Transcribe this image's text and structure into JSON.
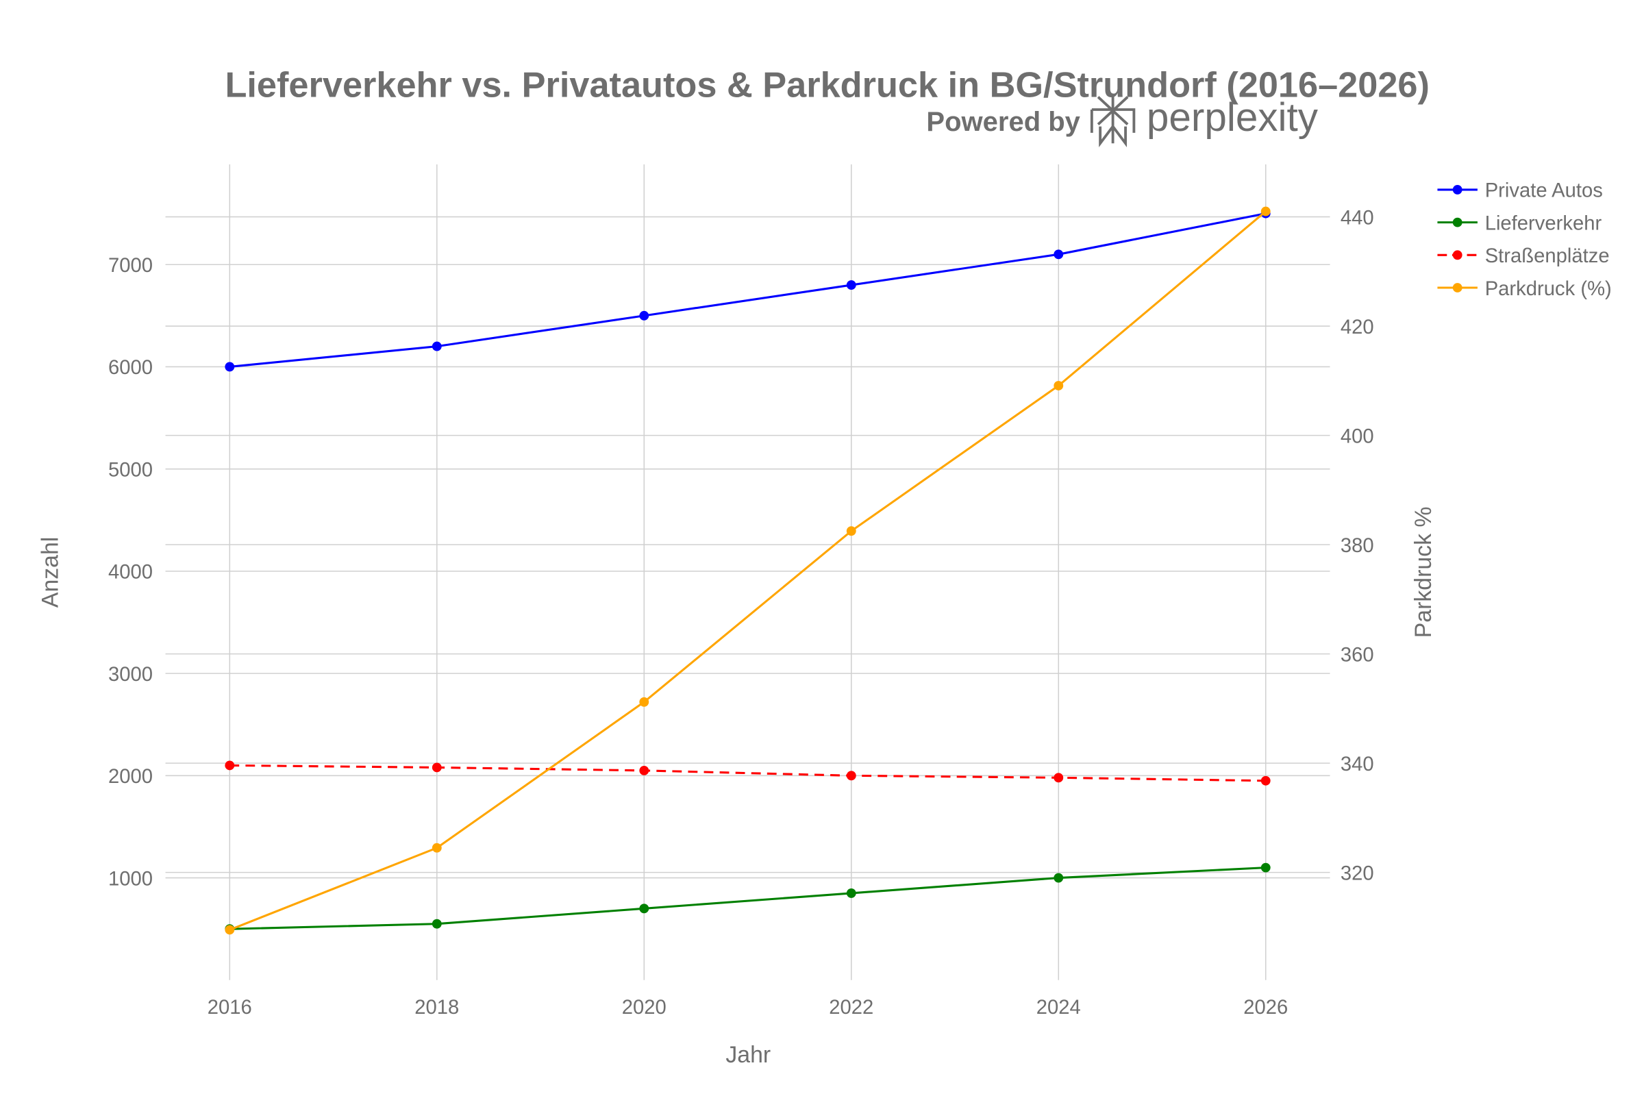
{
  "chart_data": {
    "type": "line",
    "title": "Lieferverkehr vs. Privatautos & Parkdruck in BG/Strundorf (2016–2026)",
    "watermark": {
      "prefix": "Powered by",
      "brand": "perplexity"
    },
    "xlabel": "Jahr",
    "ylabel": "Anzahl",
    "y2label": "Parkdruck %",
    "x": [
      2016,
      2018,
      2020,
      2022,
      2024,
      2026
    ],
    "xlim": [
      2015.38,
      2026.62
    ],
    "ylim": [
      0,
      7980
    ],
    "y2lim": [
      300.3,
      449.6
    ],
    "xticks": [
      "2016",
      "2018",
      "2020",
      "2022",
      "2024",
      "2026"
    ],
    "yticks": [
      1000,
      2000,
      3000,
      4000,
      5000,
      6000,
      7000
    ],
    "y2ticks": [
      320,
      340,
      360,
      380,
      400,
      420,
      440
    ],
    "grid": true,
    "legend_position": "top-right-outside",
    "series": [
      {
        "name": "Private Autos",
        "axis": "left",
        "color": "#0000ff",
        "dash": false,
        "values": [
          6000,
          6200,
          6500,
          6800,
          7100,
          7500
        ]
      },
      {
        "name": "Lieferverkehr",
        "axis": "left",
        "color": "#008000",
        "dash": false,
        "values": [
          500,
          550,
          700,
          850,
          1000,
          1100
        ]
      },
      {
        "name": "Straßenplätze",
        "axis": "left",
        "color": "#ff0000",
        "dash": true,
        "values": [
          2100,
          2080,
          2050,
          2000,
          1980,
          1950
        ]
      },
      {
        "name": "Parkdruck (%)",
        "axis": "right",
        "color": "#ffa500",
        "dash": false,
        "values": [
          309.5,
          324.5,
          351.2,
          382.5,
          409.1,
          441.0
        ]
      }
    ]
  }
}
